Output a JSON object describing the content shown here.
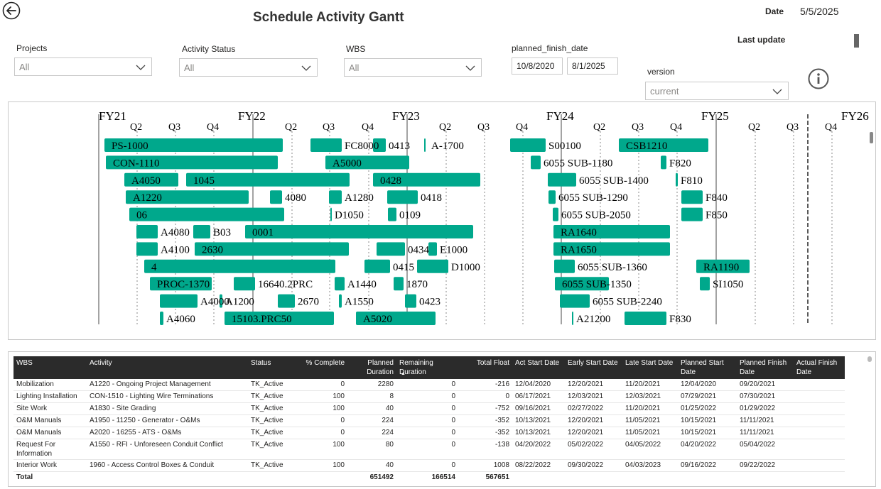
{
  "header": {
    "title": "Schedule Activity Gantt",
    "date_label": "Date",
    "date_value": "5/5/2025",
    "last_update_label": "Last update"
  },
  "filters": {
    "projects": {
      "label": "Projects",
      "value": "All"
    },
    "activity_status": {
      "label": "Activity Status",
      "value": "All"
    },
    "wbs": {
      "label": "WBS",
      "value": "All"
    },
    "planned_finish_date": {
      "label": "planned_finish_date",
      "from": "10/8/2020",
      "to": "8/1/2025"
    },
    "version": {
      "label": "version",
      "value": "current"
    }
  },
  "gantt": {
    "bar_color": "#00a88c",
    "fiscal_years": [
      "FY21",
      "FY22",
      "FY23",
      "FY24",
      "FY25",
      "FY26"
    ],
    "quarter_labels": [
      "Q2",
      "Q3",
      "Q4"
    ],
    "bars": [
      {
        "label": "PS-1000",
        "row": 0,
        "start": 146,
        "end": 397
      },
      {
        "label": "FC8000",
        "row": 0,
        "start": 436,
        "end": 480
      },
      {
        "label": "0413",
        "row": 0,
        "start": 524,
        "end": 542
      },
      {
        "label": "A-1700",
        "row": 0,
        "start": 596,
        "end": 598
      },
      {
        "label": "S00100",
        "row": 0,
        "start": 717,
        "end": 767
      },
      {
        "label": "CSB1210",
        "row": 0,
        "start": 870,
        "end": 996
      },
      {
        "label": "CON-1110",
        "row": 1,
        "start": 148,
        "end": 390
      },
      {
        "label": "A5000",
        "row": 1,
        "start": 457,
        "end": 575
      },
      {
        "label": "6055 SUB-1180",
        "row": 1,
        "start": 746,
        "end": 760
      },
      {
        "label": "F820",
        "row": 1,
        "start": 929,
        "end": 937
      },
      {
        "label": "A4050",
        "row": 2,
        "start": 174,
        "end": 250
      },
      {
        "label": "1045",
        "row": 2,
        "start": 261,
        "end": 491
      },
      {
        "label": "0428",
        "row": 2,
        "start": 524,
        "end": 675
      },
      {
        "label": "6055 SUB-1400",
        "row": 2,
        "start": 770,
        "end": 810
      },
      {
        "label": "F810",
        "row": 2,
        "start": 950,
        "end": 953
      },
      {
        "label": "A1220",
        "row": 3,
        "start": 176,
        "end": 349
      },
      {
        "label": "4080",
        "row": 3,
        "start": 379,
        "end": 396
      },
      {
        "label": "A1280",
        "row": 3,
        "start": 462,
        "end": 480
      },
      {
        "label": "0418",
        "row": 3,
        "start": 544,
        "end": 587
      },
      {
        "label": "6055 SUB-1290",
        "row": 3,
        "start": 771,
        "end": 781
      },
      {
        "label": "F840",
        "row": 3,
        "start": 958,
        "end": 988
      },
      {
        "label": "06",
        "row": 4,
        "start": 181,
        "end": 399
      },
      {
        "label": "D1050",
        "row": 4,
        "start": 464,
        "end": 466
      },
      {
        "label": "0109",
        "row": 4,
        "start": 545,
        "end": 557
      },
      {
        "label": "6055 SUB-2050",
        "row": 4,
        "start": 777,
        "end": 785
      },
      {
        "label": "F850",
        "row": 4,
        "start": 958,
        "end": 988
      },
      {
        "label": "A4080",
        "row": 5,
        "start": 191,
        "end": 221
      },
      {
        "label": "B03",
        "row": 5,
        "start": 271,
        "end": 295
      },
      {
        "label": "0001",
        "row": 5,
        "start": 344,
        "end": 665
      },
      {
        "label": "RA1640",
        "row": 5,
        "start": 778,
        "end": 942
      },
      {
        "label": "A4100",
        "row": 6,
        "start": 191,
        "end": 221
      },
      {
        "label": "2630",
        "row": 6,
        "start": 273,
        "end": 490
      },
      {
        "label": "0434",
        "row": 6,
        "start": 529,
        "end": 569
      },
      {
        "label": "E1000",
        "row": 6,
        "start": 602,
        "end": 614
      },
      {
        "label": "RA1650",
        "row": 6,
        "start": 778,
        "end": 942
      },
      {
        "label": "4",
        "row": 7,
        "start": 202,
        "end": 471
      },
      {
        "label": "0415",
        "row": 7,
        "start": 512,
        "end": 548
      },
      {
        "label": "D1000",
        "row": 7,
        "start": 586,
        "end": 630
      },
      {
        "label": "6055 SUB-1360",
        "row": 7,
        "start": 779,
        "end": 808
      },
      {
        "label": "RA1190",
        "row": 7,
        "start": 979,
        "end": 1054
      },
      {
        "label": "PROC-1370",
        "row": 8,
        "start": 210,
        "end": 297
      },
      {
        "label": "16640.2PRC",
        "row": 8,
        "start": 328,
        "end": 358
      },
      {
        "label": "A1440",
        "row": 8,
        "start": 470,
        "end": 484
      },
      {
        "label": "1870",
        "row": 8,
        "start": 553,
        "end": 567
      },
      {
        "label": "6055 SUB-1350",
        "row": 8,
        "start": 780,
        "end": 856
      },
      {
        "label": "SI1050",
        "row": 8,
        "start": 984,
        "end": 998
      },
      {
        "label": "A4000",
        "row": 9,
        "start": 224,
        "end": 277
      },
      {
        "label": "A1200",
        "row": 9,
        "start": 308,
        "end": 312
      },
      {
        "label": "2670",
        "row": 9,
        "start": 390,
        "end": 414
      },
      {
        "label": "A1550",
        "row": 9,
        "start": 476,
        "end": 480
      },
      {
        "label": "0423",
        "row": 9,
        "start": 569,
        "end": 585
      },
      {
        "label": "6055 SUB-2240",
        "row": 9,
        "start": 787,
        "end": 829
      },
      {
        "label": "A4060",
        "row": 10,
        "start": 224,
        "end": 229
      },
      {
        "label": "15103.PRC50",
        "row": 10,
        "start": 315,
        "end": 469
      },
      {
        "label": "A5020",
        "row": 10,
        "start": 500,
        "end": 612
      },
      {
        "label": "A21200",
        "row": 10,
        "start": 804,
        "end": 806
      },
      {
        "label": "F830",
        "row": 10,
        "start": 878,
        "end": 937
      }
    ]
  },
  "table": {
    "columns": [
      "WBS",
      "Activity",
      "Status",
      "% Complete",
      "Planned Duration",
      "Remaining Duration",
      "Total Float",
      "Act Start Date",
      "Early Start Date",
      "Late Start Date",
      "Planned Start Date",
      "Planned Finish Date",
      "Actual Finish Date"
    ],
    "rows": [
      [
        "Mobilization",
        "A1220 - Ongoing Project Management",
        "TK_Active",
        "0",
        "2280",
        "0",
        "-216",
        "12/04/2020",
        "12/20/2021",
        "11/20/2021",
        "12/04/2020",
        "09/20/2021",
        ""
      ],
      [
        "Lighting Installation",
        "CON-1510 - Lighting Wire Terminations",
        "TK_Active",
        "100",
        "8",
        "0",
        "0",
        "06/17/2021",
        "12/03/2021",
        "12/03/2021",
        "07/29/2021",
        "07/30/2021",
        ""
      ],
      [
        "Site Work",
        "A1830 - Site Grading",
        "TK_Active",
        "100",
        "40",
        "0",
        "-752",
        "09/16/2021",
        "02/27/2022",
        "11/20/2021",
        "01/25/2022",
        "01/29/2022",
        ""
      ],
      [
        "O&M Manuals",
        "A1950 - 11250 - Generator - O&Ms",
        "TK_Active",
        "0",
        "224",
        "0",
        "-352",
        "10/13/2021",
        "12/20/2021",
        "11/05/2021",
        "10/15/2021",
        "11/11/2021",
        ""
      ],
      [
        "O&M Manuals",
        "A2020 - 16255 - ATS - O&Ms",
        "TK_Active",
        "0",
        "224",
        "0",
        "-352",
        "10/13/2021",
        "12/20/2021",
        "11/05/2021",
        "10/15/2021",
        "11/11/2021",
        ""
      ],
      [
        "Request For Information",
        "A1550 - RFI - Unforeseen Conduit Conflict",
        "TK_Active",
        "100",
        "80",
        "0",
        "-138",
        "04/20/2022",
        "05/02/2022",
        "04/05/2022",
        "04/20/2022",
        "05/04/2022",
        ""
      ],
      [
        "Interior Work",
        "1960 - Access Control Boxes & Conduit",
        "TK_Active",
        "100",
        "40",
        "0",
        "1008",
        "08/22/2022",
        "09/30/2022",
        "04/03/2023",
        "09/16/2022",
        "09/22/2022",
        ""
      ]
    ],
    "total": {
      "label": "Total",
      "planned_duration": "651492",
      "remaining_duration": "166514",
      "total_float": "567651"
    }
  }
}
